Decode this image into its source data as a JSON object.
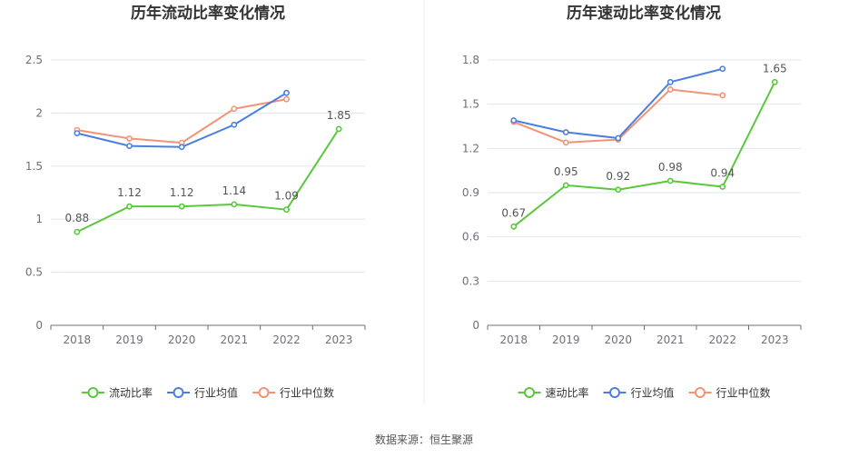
{
  "source": "数据来源：恒生聚源",
  "chart_data": [
    {
      "type": "line",
      "title": "历年流动比率变化情况",
      "categories": [
        "2018",
        "2019",
        "2020",
        "2021",
        "2022",
        "2023"
      ],
      "ylim": [
        0,
        2.5
      ],
      "yticks": [
        "0",
        "0.5",
        "1",
        "1.5",
        "2",
        "2.5"
      ],
      "grid": true,
      "legend_position": "bottom",
      "series": [
        {
          "name": "流动比率",
          "color": "#5ac83c",
          "values": [
            0.88,
            1.12,
            1.12,
            1.14,
            1.09,
            1.85
          ],
          "labels": [
            "0.88",
            "1.12",
            "1.12",
            "1.14",
            "1.09",
            "1.85"
          ]
        },
        {
          "name": "行业均值",
          "color": "#4a7fe0",
          "values": [
            1.81,
            1.69,
            1.68,
            1.89,
            2.19,
            null
          ]
        },
        {
          "name": "行业中位数",
          "color": "#f39375",
          "values": [
            1.84,
            1.76,
            1.72,
            2.04,
            2.13,
            null
          ]
        }
      ]
    },
    {
      "type": "line",
      "title": "历年速动比率变化情况",
      "categories": [
        "2018",
        "2019",
        "2020",
        "2021",
        "2022",
        "2023"
      ],
      "ylim": [
        0,
        1.8
      ],
      "yticks": [
        "0",
        "0.3",
        "0.6",
        "0.9",
        "1.2",
        "1.5",
        "1.8"
      ],
      "grid": true,
      "legend_position": "bottom",
      "series": [
        {
          "name": "速动比率",
          "color": "#5ac83c",
          "values": [
            0.67,
            0.95,
            0.92,
            0.98,
            0.94,
            1.65
          ],
          "labels": [
            "0.67",
            "0.95",
            "0.92",
            "0.98",
            "0.94",
            "1.65"
          ]
        },
        {
          "name": "行业均值",
          "color": "#4a7fe0",
          "values": [
            1.39,
            1.31,
            1.27,
            1.65,
            1.74,
            null
          ]
        },
        {
          "name": "行业中位数",
          "color": "#f39375",
          "values": [
            1.38,
            1.24,
            1.26,
            1.6,
            1.56,
            null
          ]
        }
      ]
    }
  ]
}
